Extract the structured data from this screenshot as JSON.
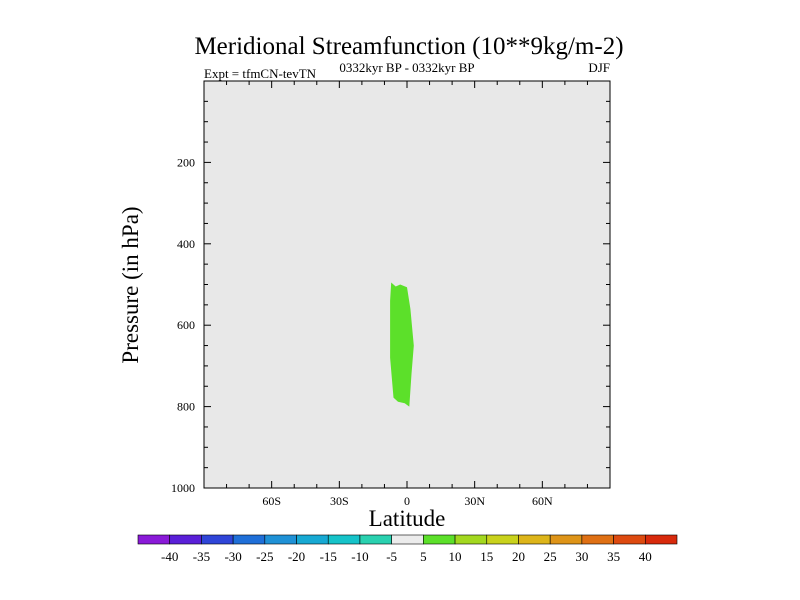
{
  "chart_data": {
    "type": "contour",
    "title": "Meridional Streamfunction (10**9kg/m-2)",
    "subtitle_left": "Expt = tfmCN-tevTN",
    "subtitle_center": "0332kyr BP - 0332kyr BP",
    "subtitle_right": "DJF",
    "xlabel": "Latitude",
    "ylabel": "Pressure (in hPa)",
    "xlim": [
      -90,
      90
    ],
    "ylim": [
      0,
      1000
    ],
    "y_inverted": true,
    "x_ticks": [
      {
        "value": -60,
        "label": "60S"
      },
      {
        "value": -30,
        "label": "30S"
      },
      {
        "value": 0,
        "label": "0"
      },
      {
        "value": 30,
        "label": "30N"
      },
      {
        "value": 60,
        "label": "60N"
      }
    ],
    "y_ticks": [
      {
        "value": 200,
        "label": "200"
      },
      {
        "value": 400,
        "label": "400"
      },
      {
        "value": 600,
        "label": "600"
      },
      {
        "value": 800,
        "label": "800"
      },
      {
        "value": 1000,
        "label": "1000"
      }
    ],
    "background_color": "#e8e8e8",
    "filled_regions": [
      {
        "level": "5 to 10",
        "color": "#5ce02a",
        "polygon": [
          [
            -7,
            495
          ],
          [
            -5,
            505
          ],
          [
            -3,
            500
          ],
          [
            0,
            507
          ],
          [
            1.5,
            560
          ],
          [
            3,
            650
          ],
          [
            2,
            720
          ],
          [
            1,
            800
          ],
          [
            -1,
            792
          ],
          [
            -4,
            788
          ],
          [
            -6,
            778
          ],
          [
            -7.5,
            680
          ],
          [
            -7.5,
            600
          ],
          [
            -7.5,
            540
          ]
        ]
      }
    ],
    "colorbar": {
      "labels": [
        "-40",
        "-35",
        "-30",
        "-25",
        "-20",
        "-15",
        "-10",
        "-5",
        "5",
        "10",
        "15",
        "20",
        "25",
        "30",
        "35",
        "40"
      ],
      "colors": [
        "#8a1ad8",
        "#5a1fd8",
        "#2f45d8",
        "#1f6fd8",
        "#1f91d6",
        "#17a9d3",
        "#16c3c9",
        "#2ad1b0",
        "#ececec",
        "#5ce02a",
        "#a3d81f",
        "#c9d21c",
        "#ddb51a",
        "#de9418",
        "#df7014",
        "#dd4a10",
        "#d82a0c"
      ]
    }
  }
}
